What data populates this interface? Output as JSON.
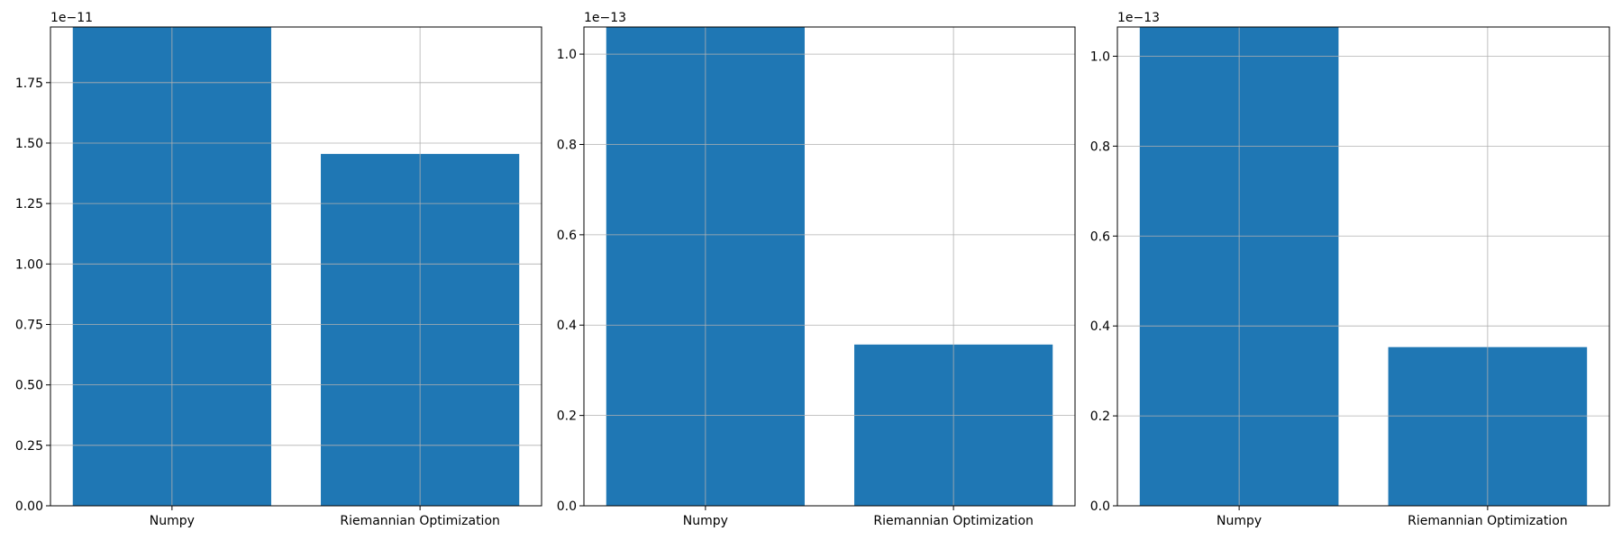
{
  "chart_data": [
    {
      "type": "bar",
      "categories": [
        "Numpy",
        "Riemannian Optimization"
      ],
      "values": [
        1.98e-11,
        1.455e-11
      ],
      "ylim": [
        0,
        1.98e-11
      ],
      "y_offset_label": "1e−11",
      "yticks": [
        0,
        2.5e-12,
        5e-12,
        7.5e-12,
        1e-11,
        1.25e-11,
        1.5e-11,
        1.75e-11
      ],
      "ytick_labels": [
        "0.00",
        "0.25",
        "0.50",
        "0.75",
        "1.00",
        "1.25",
        "1.50",
        "1.75"
      ],
      "grid": true,
      "bar_color": "#1f77b4"
    },
    {
      "type": "bar",
      "categories": [
        "Numpy",
        "Riemannian Optimization"
      ],
      "values": [
        1.06e-13,
        3.57e-14
      ],
      "ylim": [
        0,
        1.06e-13
      ],
      "y_offset_label": "1e−13",
      "yticks": [
        0,
        2e-14,
        4e-14,
        6e-14,
        8e-14,
        1e-13
      ],
      "ytick_labels": [
        "0.0",
        "0.2",
        "0.4",
        "0.6",
        "0.8",
        "1.0"
      ],
      "grid": true,
      "bar_color": "#1f77b4"
    },
    {
      "type": "bar",
      "categories": [
        "Numpy",
        "Riemannian Optimization"
      ],
      "values": [
        1.065e-13,
        3.53e-14
      ],
      "ylim": [
        0,
        1.065e-13
      ],
      "y_offset_label": "1e−13",
      "yticks": [
        0,
        2e-14,
        4e-14,
        6e-14,
        8e-14,
        1e-13
      ],
      "ytick_labels": [
        "0.0",
        "0.2",
        "0.4",
        "0.6",
        "0.8",
        "1.0"
      ],
      "grid": true,
      "bar_color": "#1f77b4"
    }
  ]
}
